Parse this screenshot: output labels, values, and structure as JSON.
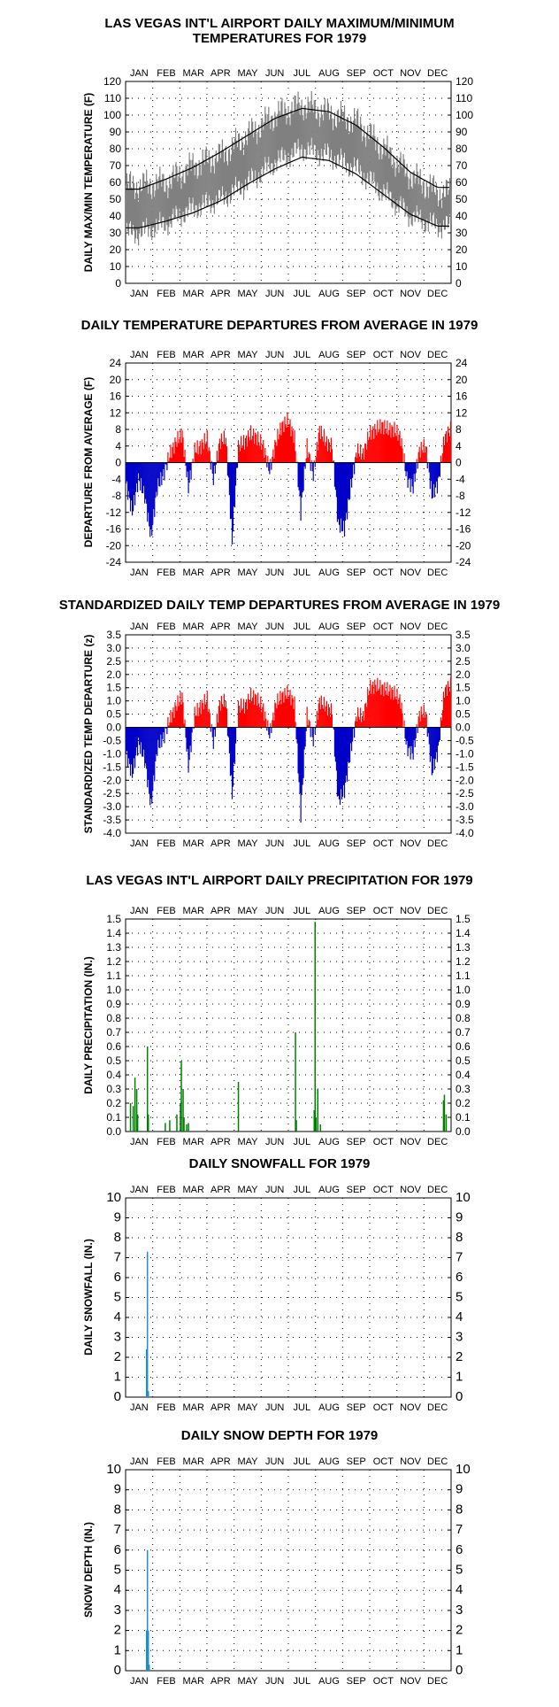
{
  "months": [
    "JAN",
    "FEB",
    "MAR",
    "APR",
    "MAY",
    "JUN",
    "JUL",
    "AUG",
    "SEP",
    "OCT",
    "NOV",
    "DEC"
  ],
  "colors": {
    "gray_band": "#808080",
    "above": "#ff0000",
    "below": "#0000c8",
    "precip": "#008000",
    "snow": "#1e90c8",
    "axis": "#000000"
  },
  "chart_data": [
    {
      "id": "temps",
      "type": "area",
      "title_lines": [
        "LAS VEGAS INT'L AIRPORT DAILY MAXIMUM/MINIMUM",
        "TEMPERATURES FOR 1979"
      ],
      "ylabel": "DAILY MAX/MIN TEMPERATURE (F)",
      "ylim": [
        0,
        120
      ],
      "yticks": [
        0,
        10,
        20,
        30,
        40,
        50,
        60,
        70,
        80,
        90,
        100,
        110,
        120
      ],
      "grid": true,
      "series": [
        {
          "role": "observed max (monthly approx, F)",
          "values": [
            58,
            60,
            70,
            76,
            88,
            100,
            106,
            101,
            96,
            80,
            64,
            54
          ]
        },
        {
          "role": "observed min (monthly approx, F)",
          "values": [
            30,
            36,
            45,
            50,
            60,
            72,
            80,
            76,
            68,
            54,
            40,
            34
          ]
        },
        {
          "role": "normal max (F)",
          "values": [
            56,
            62,
            69,
            78,
            88,
            98,
            104,
            102,
            94,
            81,
            66,
            57
          ]
        },
        {
          "role": "normal min (F)",
          "values": [
            33,
            37,
            42,
            49,
            59,
            68,
            75,
            73,
            65,
            53,
            41,
            34
          ]
        }
      ]
    },
    {
      "id": "departures",
      "type": "bar",
      "title_lines": [
        "DAILY TEMPERATURE DEPARTURES FROM AVERAGE IN 1979"
      ],
      "ylabel": "DEPARTURE FROM AVERAGE (F)",
      "ylim": [
        -24,
        24
      ],
      "yticks": [
        24,
        20,
        16,
        12,
        8,
        4,
        0,
        -4,
        -8,
        -12,
        -16,
        -20,
        -24
      ],
      "grid": true,
      "weekly_values": [
        -5,
        -12,
        -4,
        -8,
        -18,
        -6,
        -3,
        2,
        5,
        7,
        -6,
        3,
        4,
        6,
        -4,
        5,
        6,
        -19,
        4,
        5,
        7,
        6,
        4,
        -2,
        5,
        9,
        10,
        6,
        -12,
        4,
        -3,
        8,
        5,
        4,
        -15,
        -16,
        -6,
        3,
        2,
        7,
        8,
        9,
        8,
        8,
        6,
        -4,
        -6,
        3,
        4,
        -8,
        -5,
        6,
        8
      ]
    },
    {
      "id": "standardized",
      "type": "bar",
      "title_lines": [
        "STANDARDIZED DAILY TEMP DEPARTURES FROM AVERAGE IN 1979"
      ],
      "ylabel": "STANDARDIZED TEMP DEPARTURE (z)",
      "ylim": [
        -4.0,
        3.5
      ],
      "yticks": [
        3.5,
        3.0,
        2.5,
        2.0,
        1.5,
        1.0,
        0.5,
        0.0,
        -0.5,
        -1.0,
        -1.5,
        -2.0,
        -2.5,
        -3.0,
        -3.5,
        -4.0
      ],
      "yticklabels": [
        "3.5",
        "3.0",
        "2.5",
        "2.0",
        "1.5",
        "1.0",
        "0.5",
        "0.0",
        "-0.5",
        "-1.0",
        "-1.5",
        "-2.0",
        "-2.5",
        "-3.0",
        "-3.5",
        "-4.0"
      ],
      "grid": true,
      "weekly_values": [
        -1.0,
        -1.8,
        -0.6,
        -1.2,
        -3.0,
        -0.8,
        -0.4,
        0.3,
        0.8,
        1.2,
        -1.5,
        0.5,
        0.8,
        1.1,
        -0.6,
        0.9,
        1.0,
        -2.6,
        0.8,
        0.8,
        1.2,
        1.1,
        0.7,
        -0.3,
        0.9,
        1.2,
        1.3,
        0.9,
        -3.3,
        0.5,
        -0.5,
        1.0,
        0.8,
        0.6,
        -2.8,
        -2.4,
        -0.9,
        0.5,
        0.4,
        1.5,
        1.6,
        1.5,
        1.4,
        1.3,
        1.0,
        -0.8,
        -1.0,
        0.5,
        0.6,
        -1.7,
        -0.9,
        1.4,
        1.6
      ]
    },
    {
      "id": "precip",
      "type": "bar",
      "title_lines": [
        "LAS VEGAS INT'L AIRPORT DAILY PRECIPITATION FOR 1979"
      ],
      "ylabel": "DAILY PRECIPITATION (IN.)",
      "ylim": [
        0,
        1.5
      ],
      "yticks": [
        0,
        0.1,
        0.2,
        0.3,
        0.4,
        0.5,
        0.6,
        0.7,
        0.8,
        0.9,
        1.0,
        1.1,
        1.2,
        1.3,
        1.4,
        1.5
      ],
      "yticklabels": [
        "0.0",
        "0.1",
        "0.2",
        "0.3",
        "0.4",
        "0.5",
        "0.6",
        "0.7",
        "0.8",
        "0.9",
        "1.0",
        "1.1",
        "1.2",
        "1.3",
        "1.4",
        "1.5"
      ],
      "grid": true,
      "events": [
        [
          5,
          0.2
        ],
        [
          8,
          0.18
        ],
        [
          10,
          0.38
        ],
        [
          12,
          0.3
        ],
        [
          13,
          0.12
        ],
        [
          24,
          0.6
        ],
        [
          25,
          0.12
        ],
        [
          44,
          0.06
        ],
        [
          49,
          0.08
        ],
        [
          57,
          0.12
        ],
        [
          61,
          0.2
        ],
        [
          62,
          0.5
        ],
        [
          64,
          0.3
        ],
        [
          65,
          0.1
        ],
        [
          68,
          0.05
        ],
        [
          70,
          0.06
        ],
        [
          126,
          0.35
        ],
        [
          190,
          0.7
        ],
        [
          191,
          0.08
        ],
        [
          211,
          0.15
        ],
        [
          212,
          1.48
        ],
        [
          213,
          0.1
        ],
        [
          215,
          0.3
        ],
        [
          218,
          0.05
        ],
        [
          356,
          0.22
        ],
        [
          357,
          0.26
        ],
        [
          359,
          0.12
        ]
      ]
    },
    {
      "id": "snowfall",
      "type": "bar",
      "title_lines": [
        "DAILY SNOWFALL FOR 1979"
      ],
      "ylabel": "DAILY SNOWFALL (IN.)",
      "ylim": [
        0,
        10
      ],
      "yticks": [
        0,
        1,
        2,
        3,
        4,
        5,
        6,
        7,
        8,
        9,
        10
      ],
      "grid": true,
      "events": [
        [
          23,
          2.4
        ],
        [
          24,
          7.3
        ],
        [
          25,
          0.3
        ]
      ]
    },
    {
      "id": "snowdepth",
      "type": "bar",
      "title_lines": [
        "DAILY SNOW DEPTH FOR 1979"
      ],
      "ylabel": "SNOW DEPTH (IN.)",
      "ylim": [
        0,
        10
      ],
      "yticks": [
        0,
        1,
        2,
        3,
        4,
        5,
        6,
        7,
        8,
        9,
        10
      ],
      "grid": true,
      "events": [
        [
          23,
          2.0
        ],
        [
          24,
          6.0
        ],
        [
          25,
          2.0
        ],
        [
          26,
          0.3
        ]
      ]
    }
  ]
}
